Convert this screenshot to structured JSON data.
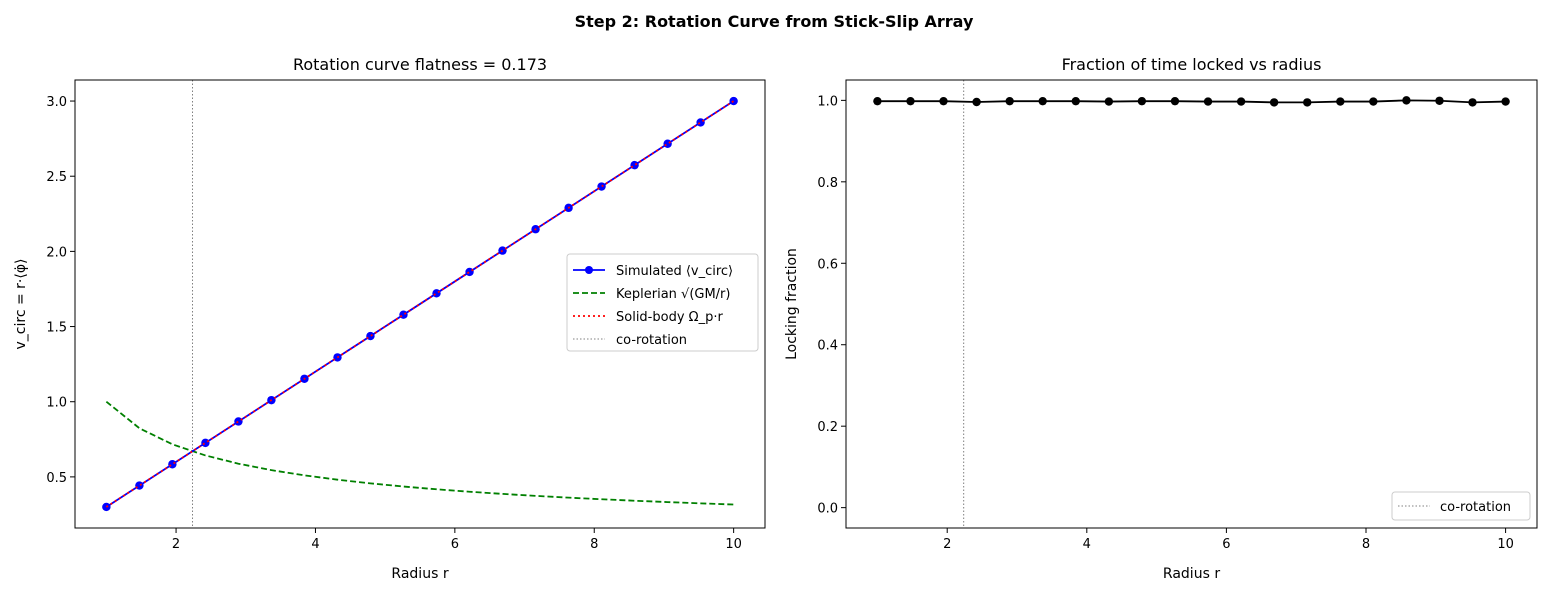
{
  "suptitle": "Step 2: Rotation Curve from Stick-Slip Array",
  "chart_data": [
    {
      "type": "line",
      "title": "Rotation curve   flatness = 0.173",
      "xlabel": "Radius r",
      "ylabel": "v_circ = r·⟨φ̇⟩",
      "xlim": [
        0.55,
        10.45
      ],
      "ylim": [
        0.16,
        3.14
      ],
      "xticks": [
        2,
        4,
        6,
        8,
        10
      ],
      "yticks": [
        0.5,
        1.0,
        1.5,
        2.0,
        2.5,
        3.0
      ],
      "x": [
        1,
        1.474,
        1.947,
        2.421,
        2.895,
        3.368,
        3.842,
        4.316,
        4.789,
        5.263,
        5.737,
        6.211,
        6.684,
        7.158,
        7.632,
        8.105,
        8.579,
        9.053,
        9.526,
        10
      ],
      "series": [
        {
          "name": "Simulated ⟨v_circ⟩",
          "formula_values": "0.3*r",
          "color": "#0000ff",
          "style": "solid-marker"
        },
        {
          "name": "Keplerian √(GM/r)",
          "formula_values": "1/sqrt(r)",
          "color": "#008000",
          "style": "dashed"
        },
        {
          "name": "Solid-body Ω_p·r",
          "formula_values": "0.3*r",
          "color": "#ff0000",
          "style": "dotted"
        }
      ],
      "vline": {
        "name": "co-rotation",
        "x": 2.236,
        "color": "#808080"
      },
      "legend": "center-right"
    },
    {
      "type": "line",
      "title": "Fraction of time locked vs radius",
      "xlabel": "Radius r",
      "ylabel": "Locking fraction",
      "xlim": [
        0.55,
        10.45
      ],
      "ylim": [
        -0.05,
        1.05
      ],
      "xticks": [
        2,
        4,
        6,
        8,
        10
      ],
      "yticks": [
        0.0,
        0.2,
        0.4,
        0.6,
        0.8,
        1.0
      ],
      "x": [
        1,
        1.474,
        1.947,
        2.421,
        2.895,
        3.368,
        3.842,
        4.316,
        4.789,
        5.263,
        5.737,
        6.211,
        6.684,
        7.158,
        7.632,
        8.105,
        8.579,
        9.053,
        9.526,
        10
      ],
      "series": [
        {
          "name": "Locking fraction",
          "values": [
            0.998,
            0.998,
            0.998,
            0.996,
            0.998,
            0.998,
            0.998,
            0.997,
            0.998,
            0.998,
            0.997,
            0.997,
            0.995,
            0.995,
            0.997,
            0.997,
            1.0,
            0.999,
            0.995,
            0.997
          ],
          "color": "#000000"
        }
      ],
      "vline": {
        "name": "co-rotation",
        "x": 2.236,
        "color": "#808080"
      },
      "legend": "lower-right"
    }
  ]
}
